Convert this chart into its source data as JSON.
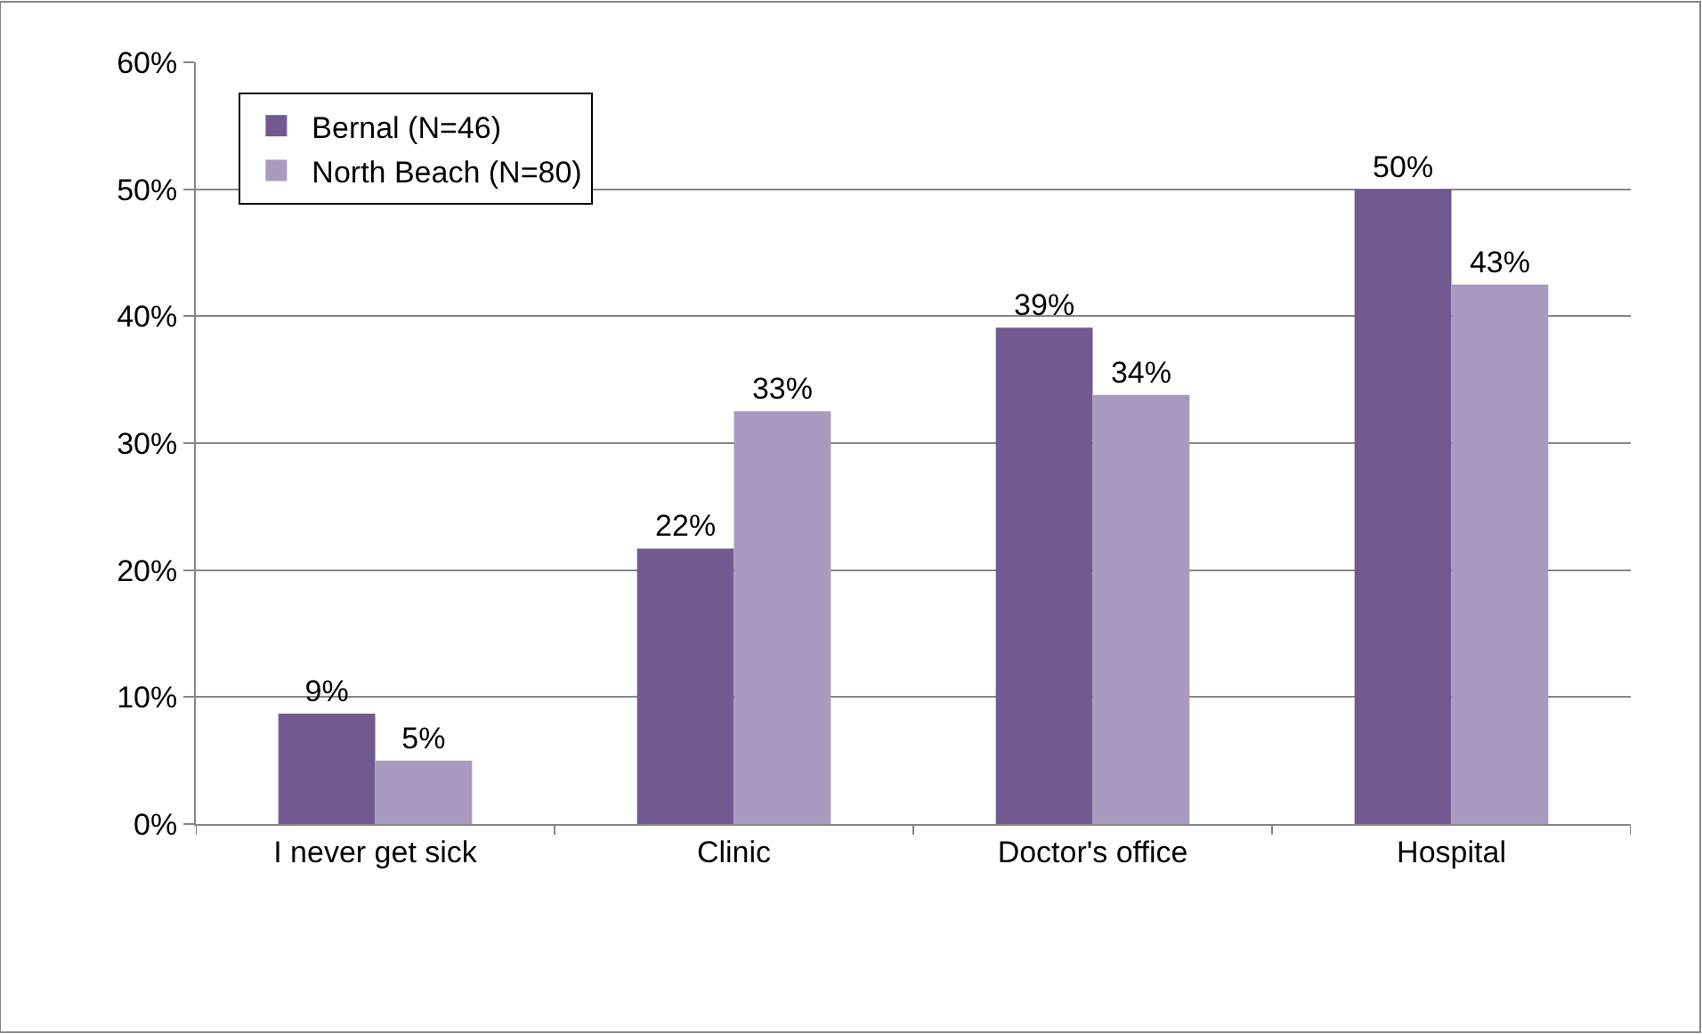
{
  "chart_data": {
    "type": "bar",
    "categories": [
      "I never get sick",
      "Clinic",
      "Doctor's office",
      "Hospital"
    ],
    "series": [
      {
        "name": "Bernal (N=46)",
        "color": "#725990",
        "values": [
          8.7,
          21.7,
          39.1,
          50.0
        ],
        "value_labels": [
          "9%",
          "22%",
          "39%",
          "50%"
        ]
      },
      {
        "name": "North Beach (N=80)",
        "color": "#a99bc0",
        "values": [
          5.0,
          32.5,
          33.8,
          42.5
        ],
        "value_labels": [
          "5%",
          "33%",
          "34%",
          "43%"
        ]
      }
    ],
    "ylim": [
      0,
      60
    ],
    "yticks": [
      {
        "value": 0,
        "label": "0%"
      },
      {
        "value": 10,
        "label": "10%"
      },
      {
        "value": 20,
        "label": "20%"
      },
      {
        "value": 30,
        "label": "30%"
      },
      {
        "value": 40,
        "label": "40%"
      },
      {
        "value": 50,
        "label": "50%"
      },
      {
        "value": 60,
        "label": "60%"
      }
    ],
    "grid": "y",
    "legend": "top left"
  }
}
